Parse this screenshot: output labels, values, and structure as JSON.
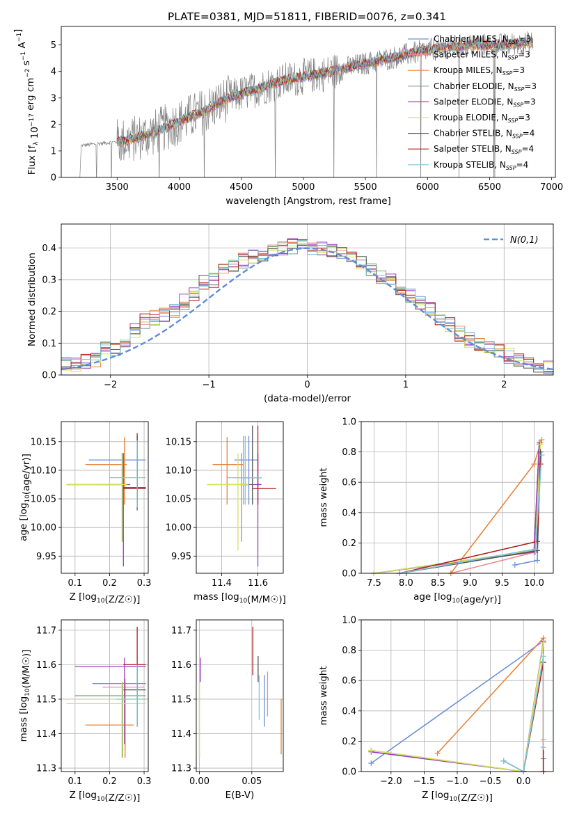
{
  "title": "PLATE=0381, MJD=51811, FIBERID=0076, z=0.341",
  "colors": {
    "chabrier_miles": "#6a8fd8",
    "salpeter_miles": "#f08a8a",
    "kroupa_miles": "#e8833a",
    "chabrier_elodie": "#7aa77a",
    "salpeter_elodie": "#9b3fbf",
    "kroupa_elodie": "#d8e05a",
    "chabrier_stelib": "#555555",
    "salpeter_stelib": "#b21f1f",
    "kroupa_stelib": "#7cc8d8",
    "data": "#808080",
    "gauss": "#5f8bdc"
  },
  "chart_data": [
    {
      "id": "spectrum",
      "type": "line",
      "xlabel": "wavelength [Angstrom, rest frame]",
      "ylabel": "Flux [f_λ 10^-17 erg cm^-2 s^-1 A^-1]",
      "xlim": [
        3050,
        7030
      ],
      "ylim": [
        0,
        5.7
      ],
      "xticks": [
        "3500",
        "4000",
        "4500",
        "5000",
        "5500",
        "6000",
        "6500",
        "7000"
      ],
      "yticks": [
        "0",
        "1",
        "2",
        "3",
        "4",
        "5"
      ],
      "grid": false,
      "legend_position": "top-right",
      "legend": [
        {
          "label": "Chabrier MILES, N",
          "sub": "SSP",
          "suffix": "=3",
          "color_key": "chabrier_miles"
        },
        {
          "label": "Salpeter MILES, N",
          "sub": "SSP",
          "suffix": "=3",
          "color_key": "salpeter_miles"
        },
        {
          "label": "Kroupa MILES, N",
          "sub": "SSP",
          "suffix": "=3",
          "color_key": "kroupa_miles"
        },
        {
          "label": "Chabrier ELODIE, N",
          "sub": "SSP",
          "suffix": "=3",
          "color_key": "chabrier_elodie"
        },
        {
          "label": "Salpeter ELODIE, N",
          "sub": "SSP",
          "suffix": "=3",
          "color_key": "salpeter_elodie"
        },
        {
          "label": "Kroupa ELODIE, N",
          "sub": "SSP",
          "suffix": "=3",
          "color_key": "kroupa_elodie"
        },
        {
          "label": "Chabrier STELIB, N",
          "sub": "SSP",
          "suffix": "=4",
          "color_key": "chabrier_stelib"
        },
        {
          "label": "Salpeter STELIB, N",
          "sub": "SSP",
          "suffix": "=4",
          "color_key": "salpeter_stelib"
        },
        {
          "label": "Kroupa STELIB, N",
          "sub": "SSP",
          "suffix": "=4",
          "color_key": "kroupa_stelib"
        }
      ],
      "continuum": [
        [
          3200,
          1.2
        ],
        [
          3400,
          1.3
        ],
        [
          3600,
          1.4
        ],
        [
          3800,
          1.7
        ],
        [
          4000,
          2.1
        ],
        [
          4200,
          2.5
        ],
        [
          4400,
          3.0
        ],
        [
          4600,
          3.3
        ],
        [
          4800,
          3.6
        ],
        [
          5000,
          3.8
        ],
        [
          5200,
          3.95
        ],
        [
          5400,
          4.2
        ],
        [
          5600,
          4.4
        ],
        [
          5800,
          4.6
        ],
        [
          6000,
          4.8
        ],
        [
          6200,
          4.95
        ],
        [
          6400,
          5.0
        ],
        [
          6600,
          5.0
        ],
        [
          6850,
          5.1
        ]
      ],
      "models_start": 3500
    },
    {
      "id": "residuals",
      "type": "line",
      "xlabel": "(data-model)/error",
      "ylabel": "Normed distribution",
      "xlim": [
        -2.5,
        2.5
      ],
      "ylim": [
        0,
        0.475
      ],
      "xticks": [
        "−2",
        "−1",
        "0",
        "1",
        "2"
      ],
      "yticks": [
        "0.0",
        "0.1",
        "0.2",
        "0.3",
        "0.4"
      ],
      "grid": true,
      "legend_position": "top-right",
      "legend": [
        {
          "label": "N(0,1)",
          "color_key": "gauss"
        }
      ],
      "bin_width": 0.1,
      "histogram": [
        0.03,
        0.03,
        0.045,
        0.045,
        0.08,
        0.075,
        0.11,
        0.14,
        0.17,
        0.18,
        0.19,
        0.2,
        0.23,
        0.26,
        0.29,
        0.3,
        0.33,
        0.34,
        0.36,
        0.37,
        0.38,
        0.39,
        0.4,
        0.405,
        0.41,
        0.4,
        0.395,
        0.39,
        0.385,
        0.37,
        0.35,
        0.33,
        0.31,
        0.3,
        0.27,
        0.25,
        0.23,
        0.21,
        0.18,
        0.16,
        0.13,
        0.11,
        0.1,
        0.09,
        0.08,
        0.06,
        0.05,
        0.04,
        0.03,
        0.02
      ]
    },
    {
      "id": "age_vs_Z",
      "type": "scatter",
      "xlabel": "Z [log10(Z/Z☉)]",
      "ylabel": "age [log10(age/yr)]",
      "xlim": [
        0.06,
        0.312
      ],
      "ylim": [
        9.92,
        10.185
      ],
      "xticks": [
        "0.1",
        "0.2",
        "0.3"
      ],
      "yticks": [
        "9.95",
        "10.00",
        "10.05",
        "10.10",
        "10.15"
      ],
      "grid": true,
      "points": [
        {
          "color_key": "chabrier_miles",
          "x": 0.28,
          "y": 10.118,
          "xlo": 0.14,
          "xhi": 0.305,
          "ylo": 10.035,
          "yhi": 10.13
        },
        {
          "color_key": "salpeter_miles",
          "x": 0.243,
          "y": 10.075,
          "xlo": 0.18,
          "xhi": 0.25,
          "ylo": 10.04,
          "yhi": 10.155
        },
        {
          "color_key": "kroupa_miles",
          "x": 0.243,
          "y": 10.11,
          "xlo": 0.13,
          "xhi": 0.25,
          "ylo": 10.04,
          "yhi": 10.158
        },
        {
          "color_key": "chabrier_elodie",
          "x": 0.238,
          "y": 10.075,
          "xlo": 0.075,
          "xhi": 0.25,
          "ylo": 9.975,
          "yhi": 10.13
        },
        {
          "color_key": "salpeter_elodie",
          "x": 0.24,
          "y": 10.075,
          "xlo": 0.075,
          "xhi": 0.26,
          "ylo": 9.932,
          "yhi": 10.13
        },
        {
          "color_key": "kroupa_elodie",
          "x": 0.236,
          "y": 10.075,
          "xlo": 0.075,
          "xhi": 0.25,
          "ylo": 9.975,
          "yhi": 10.13
        },
        {
          "color_key": "chabrier_stelib",
          "x": 0.28,
          "y": 10.07,
          "xlo": 0.24,
          "xhi": 0.305,
          "ylo": 10.03,
          "yhi": 10.16
        },
        {
          "color_key": "salpeter_stelib",
          "x": 0.28,
          "y": 10.068,
          "xlo": 0.24,
          "xhi": 0.305,
          "ylo": 10.045,
          "yhi": 10.165
        },
        {
          "color_key": "kroupa_stelib",
          "x": 0.28,
          "y": 10.087,
          "xlo": 0.2,
          "xhi": 0.305,
          "ylo": 10.035,
          "yhi": 10.152
        }
      ]
    },
    {
      "id": "age_vs_mass",
      "type": "scatter",
      "xlabel": "mass [log10(M/M☉)]",
      "ylabel": "",
      "xlim": [
        11.26,
        11.74
      ],
      "ylim": [
        9.92,
        10.185
      ],
      "xticks": [
        "11.4",
        "11.6"
      ],
      "yticks": [
        "9.95",
        "10.00",
        "10.05",
        "10.10",
        "10.15"
      ],
      "grid": true,
      "points": [
        {
          "color_key": "chabrier_miles",
          "x": 11.55,
          "y": 10.118,
          "xlo": 11.47,
          "xhi": 11.6,
          "ylo": 10.04,
          "yhi": 10.16
        },
        {
          "color_key": "salpeter_miles",
          "x": 11.52,
          "y": 10.087,
          "xlo": 11.47,
          "xhi": 11.56,
          "ylo": 10.04,
          "yhi": 10.16
        },
        {
          "color_key": "kroupa_miles",
          "x": 11.43,
          "y": 10.11,
          "xlo": 11.35,
          "xhi": 11.52,
          "ylo": 10.04,
          "yhi": 10.158
        },
        {
          "color_key": "chabrier_elodie",
          "x": 11.51,
          "y": 10.075,
          "xlo": 11.32,
          "xhi": 11.55,
          "ylo": 9.975,
          "yhi": 10.13
        },
        {
          "color_key": "salpeter_elodie",
          "x": 11.6,
          "y": 10.075,
          "xlo": 11.5,
          "xhi": 11.62,
          "ylo": 9.932,
          "yhi": 10.13
        },
        {
          "color_key": "kroupa_elodie",
          "x": 11.49,
          "y": 10.075,
          "xlo": 11.32,
          "xhi": 11.55,
          "ylo": 9.96,
          "yhi": 10.13
        },
        {
          "color_key": "chabrier_stelib",
          "x": 11.57,
          "y": 10.087,
          "xlo": 11.52,
          "xhi": 11.62,
          "ylo": 10.04,
          "yhi": 10.178
        },
        {
          "color_key": "salpeter_stelib",
          "x": 11.6,
          "y": 10.068,
          "xlo": 11.57,
          "xhi": 11.7,
          "ylo": 10.04,
          "yhi": 10.178
        },
        {
          "color_key": "kroupa_stelib",
          "x": 11.53,
          "y": 10.087,
          "xlo": 11.43,
          "xhi": 11.62,
          "ylo": 10.04,
          "yhi": 10.16
        }
      ]
    },
    {
      "id": "weight_vs_age",
      "type": "line",
      "xlabel": "age [log10(age/yr)]",
      "ylabel": "mass weight",
      "xlim": [
        7.3,
        10.3
      ],
      "ylim": [
        0,
        1
      ],
      "xticks": [
        "7.5",
        "8.0",
        "8.5",
        "9.0",
        "9.5",
        "10.0"
      ],
      "yticks": [
        "0.0",
        "0.2",
        "0.4",
        "0.6",
        "0.8",
        "1.0"
      ],
      "grid": true,
      "series": [
        {
          "color_key": "chabrier_miles",
          "x": [
            9.7,
            10.05,
            10.1
          ],
          "y": [
            0.055,
            0.085,
            0.86
          ]
        },
        {
          "color_key": "salpeter_miles",
          "x": [
            8.7,
            10.02,
            10.1
          ],
          "y": [
            0.0,
            0.14,
            0.86
          ]
        },
        {
          "color_key": "kroupa_miles",
          "x": [
            8.7,
            10.0,
            10.12
          ],
          "y": [
            0.0,
            0.72,
            0.88
          ]
        },
        {
          "color_key": "chabrier_elodie",
          "x": [
            7.5,
            10.0,
            10.08
          ],
          "y": [
            0.0,
            0.15,
            0.85
          ]
        },
        {
          "color_key": "salpeter_elodie",
          "x": [
            7.5,
            10.0,
            10.08
          ],
          "y": [
            0.0,
            0.14,
            0.86
          ]
        },
        {
          "color_key": "kroupa_elodie",
          "x": [
            7.5,
            10.02,
            10.1
          ],
          "y": [
            0.0,
            0.15,
            0.85
          ]
        },
        {
          "color_key": "chabrier_stelib",
          "x": [
            7.9,
            10.05,
            10.1
          ],
          "y": [
            0.0,
            0.15,
            0.8
          ]
        },
        {
          "color_key": "salpeter_stelib",
          "x": [
            7.9,
            10.05,
            10.1
          ],
          "y": [
            0.0,
            0.21,
            0.72
          ]
        },
        {
          "color_key": "kroupa_stelib",
          "x": [
            7.9,
            10.02,
            10.12
          ],
          "y": [
            0.0,
            0.16,
            0.78
          ]
        }
      ]
    },
    {
      "id": "mass_vs_Z",
      "type": "scatter",
      "xlabel": "Z [log10(Z/Z☉)]",
      "ylabel": "mass [log10(M/M☉)]",
      "xlim": [
        0.06,
        0.312
      ],
      "ylim": [
        11.29,
        11.73
      ],
      "xticks": [
        "0.1",
        "0.2",
        "0.3"
      ],
      "yticks": [
        "11.3",
        "11.4",
        "11.5",
        "11.6",
        "11.7"
      ],
      "grid": true,
      "points": [
        {
          "color_key": "chabrier_miles",
          "x": 0.28,
          "y": 11.545,
          "xlo": 0.15,
          "xhi": 0.305,
          "ylo": 11.42,
          "yhi": 11.55
        },
        {
          "color_key": "salpeter_miles",
          "x": 0.245,
          "y": 11.535,
          "xlo": 0.18,
          "xhi": 0.3,
          "ylo": 11.35,
          "yhi": 11.56
        },
        {
          "color_key": "kroupa_miles",
          "x": 0.245,
          "y": 11.425,
          "xlo": 0.13,
          "xhi": 0.27,
          "ylo": 11.33,
          "yhi": 11.55
        },
        {
          "color_key": "chabrier_elodie",
          "x": 0.238,
          "y": 11.51,
          "xlo": 0.1,
          "xhi": 0.305,
          "ylo": 11.33,
          "yhi": 11.55
        },
        {
          "color_key": "salpeter_elodie",
          "x": 0.243,
          "y": 11.595,
          "xlo": 0.1,
          "xhi": 0.305,
          "ylo": 11.37,
          "yhi": 11.62
        },
        {
          "color_key": "kroupa_elodie",
          "x": 0.236,
          "y": 11.487,
          "xlo": 0.075,
          "xhi": 0.305,
          "ylo": 11.33,
          "yhi": 11.55
        },
        {
          "color_key": "chabrier_stelib",
          "x": 0.28,
          "y": 11.527,
          "xlo": 0.24,
          "xhi": 0.305,
          "ylo": 11.42,
          "yhi": 11.6
        },
        {
          "color_key": "salpeter_stelib",
          "x": 0.28,
          "y": 11.6,
          "xlo": 0.24,
          "xhi": 0.305,
          "ylo": 11.5,
          "yhi": 11.71
        },
        {
          "color_key": "kroupa_stelib",
          "x": 0.28,
          "y": 11.5,
          "xlo": 0.22,
          "xhi": 0.305,
          "ylo": 11.42,
          "yhi": 11.6
        }
      ]
    },
    {
      "id": "mass_vs_EBV",
      "type": "scatter",
      "xlabel": "E(B-V)",
      "ylabel": "",
      "xlim": [
        -0.003,
        0.08
      ],
      "ylim": [
        11.29,
        11.73
      ],
      "xticks": [
        "0.00",
        "0.05"
      ],
      "yticks": [
        "11.3",
        "11.4",
        "11.5",
        "11.6",
        "11.7"
      ],
      "grid": true,
      "points": [
        {
          "color_key": "chabrier_miles",
          "x": 0.062,
          "y": 11.5,
          "ylo": 11.42,
          "yhi": 11.57
        },
        {
          "color_key": "salpeter_miles",
          "x": 0.065,
          "y": 11.535,
          "ylo": 11.45,
          "yhi": 11.58
        },
        {
          "color_key": "kroupa_miles",
          "x": 0.078,
          "y": 11.42,
          "ylo": 11.34,
          "yhi": 11.5
        },
        {
          "color_key": "chabrier_elodie",
          "x": 0.0,
          "y": 11.51,
          "ylo": 11.33,
          "yhi": 11.55
        },
        {
          "color_key": "salpeter_elodie",
          "x": 0.001,
          "y": 11.595,
          "ylo": 11.55,
          "yhi": 11.62
        },
        {
          "color_key": "kroupa_elodie",
          "x": 0.0,
          "y": 11.487,
          "ylo": 11.33,
          "yhi": 11.55
        },
        {
          "color_key": "chabrier_stelib",
          "x": 0.056,
          "y": 11.6,
          "ylo": 11.55,
          "yhi": 11.625
        },
        {
          "color_key": "salpeter_stelib",
          "x": 0.051,
          "y": 11.65,
          "ylo": 11.57,
          "yhi": 11.71
        },
        {
          "color_key": "kroupa_stelib",
          "x": 0.057,
          "y": 11.5,
          "ylo": 11.44,
          "yhi": 11.57
        }
      ]
    },
    {
      "id": "weight_vs_Z",
      "type": "line",
      "xlabel": "Z [log10(Z/Z☉)]",
      "ylabel": "mass weight",
      "xlim": [
        -2.45,
        0.45
      ],
      "ylim": [
        0,
        1
      ],
      "xticks": [
        "−2.0",
        "−1.5",
        "−1.0",
        "−0.5",
        "0.0"
      ],
      "yticks": [
        "0.0",
        "0.2",
        "0.4",
        "0.6",
        "0.8",
        "1.0"
      ],
      "grid": true,
      "series": [
        {
          "color_key": "chabrier_miles",
          "x": [
            -2.3,
            0.3,
            0.3
          ],
          "y": [
            0.055,
            0.86,
            0.085
          ]
        },
        {
          "color_key": "salpeter_miles",
          "x": [
            0.3,
            0.3,
            0.3
          ],
          "y": [
            0.0,
            0.21,
            0.86
          ]
        },
        {
          "color_key": "kroupa_miles",
          "x": [
            -1.3,
            0.3,
            0.3
          ],
          "y": [
            0.12,
            0.88,
            0.0
          ]
        },
        {
          "color_key": "chabrier_elodie",
          "x": [
            -2.3,
            0.0,
            0.3
          ],
          "y": [
            0.14,
            0.0,
            0.85
          ]
        },
        {
          "color_key": "salpeter_elodie",
          "x": [
            -2.3,
            0.0,
            0.3
          ],
          "y": [
            0.13,
            0.0,
            0.86
          ]
        },
        {
          "color_key": "kroupa_elodie",
          "x": [
            -2.3,
            0.0,
            0.3
          ],
          "y": [
            0.14,
            0.0,
            0.85
          ]
        },
        {
          "color_key": "chabrier_stelib",
          "x": [
            -0.3,
            0.0,
            0.3
          ],
          "y": [
            0.07,
            0.0,
            0.72
          ]
        },
        {
          "color_key": "salpeter_stelib",
          "x": [
            0.0,
            0.3,
            0.3
          ],
          "y": [
            0.0,
            0.72,
            0.0
          ]
        },
        {
          "color_key": "kroupa_stelib",
          "x": [
            -0.3,
            0.0,
            0.3,
            0.3
          ],
          "y": [
            0.07,
            0.0,
            0.76,
            0.16
          ]
        }
      ]
    }
  ]
}
